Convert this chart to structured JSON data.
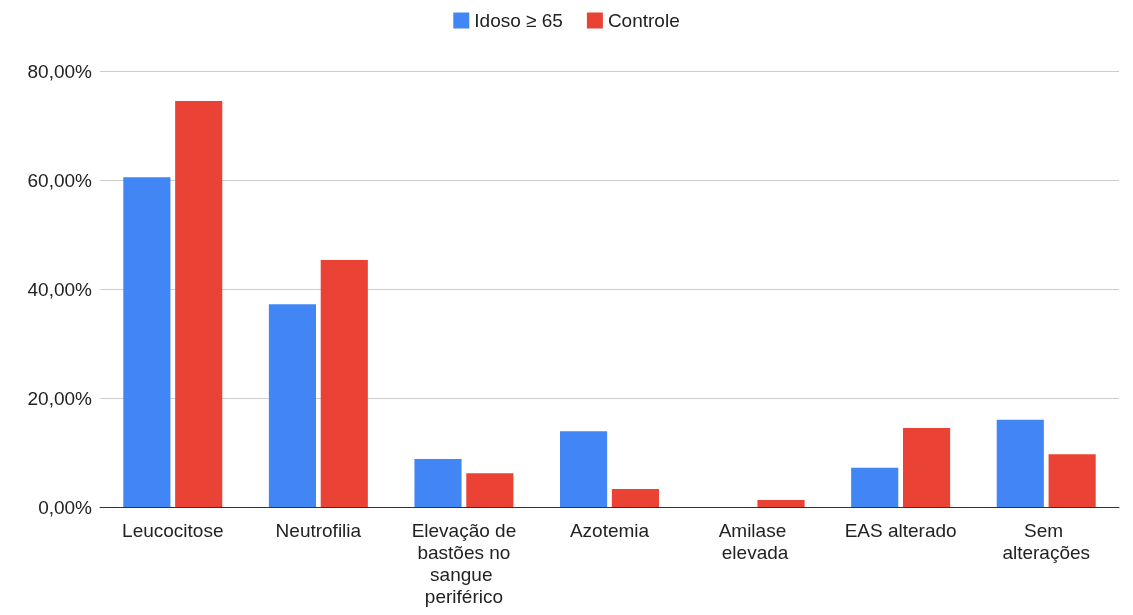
{
  "chart_data": {
    "type": "bar",
    "categories": [
      "Leucocitose",
      "Neutrofilia",
      "Elevação de bastões no sangue periférico",
      "Azotemia",
      "Amilase elevada",
      "EAS alterado",
      "Sem alterações"
    ],
    "series": [
      {
        "name": "Idoso ≥ 65",
        "color": "#4285f4",
        "values": [
          60.5,
          37.2,
          8.8,
          13.9,
          0,
          7.2,
          16.0
        ]
      },
      {
        "name": "Controle",
        "color": "#ea4335",
        "values": [
          74.5,
          45.3,
          6.2,
          3.3,
          1.3,
          14.5,
          9.7
        ]
      }
    ],
    "ylim": [
      0,
      80
    ],
    "yticks": [
      {
        "value": 0,
        "label": "0,00%"
      },
      {
        "value": 20,
        "label": "20,00%"
      },
      {
        "value": 40,
        "label": "40,00%"
      },
      {
        "value": 60,
        "label": "60,00%"
      },
      {
        "value": 80,
        "label": "80,00%"
      }
    ],
    "grid": "y",
    "legend": "top"
  }
}
